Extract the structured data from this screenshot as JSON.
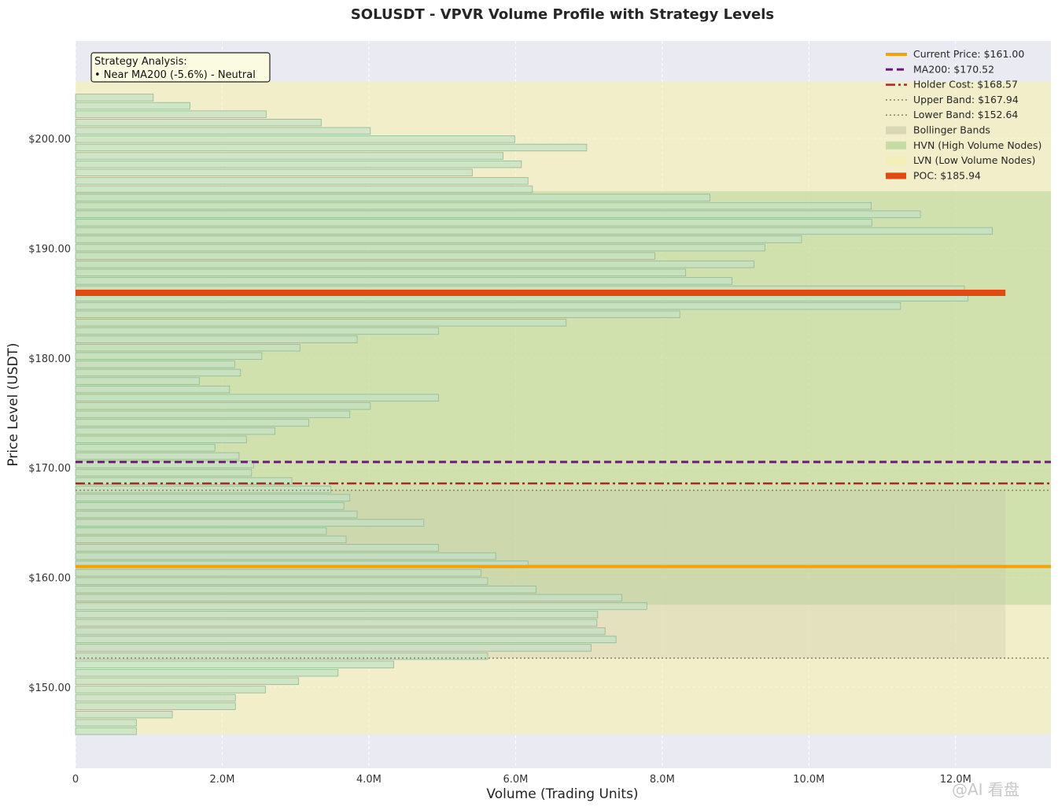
{
  "chart_data": {
    "type": "bar",
    "orientation": "horizontal",
    "title": "SOLUSDT - VPVR Volume Profile with Strategy Levels",
    "xlabel": "Volume (Trading Units)",
    "ylabel": "Price Level (USDT)",
    "xlim": [
      0,
      13300000
    ],
    "ylim": [
      142.6,
      208.9
    ],
    "x_ticks": [
      0,
      2000000,
      4000000,
      6000000,
      8000000,
      10000000,
      12000000
    ],
    "x_tick_labels": [
      "0",
      "2.0M",
      "4.0M",
      "6.0M",
      "8.0M",
      "10.0M",
      "12.0M"
    ],
    "y_ticks": [
      150,
      160,
      170,
      180,
      190,
      200
    ],
    "y_tick_labels": [
      "$150.00",
      "$160.00",
      "$170.00",
      "$180.00",
      "$190.00",
      "$200.00"
    ],
    "grid": true,
    "legend_position": "top-right",
    "bin_height": 0.76,
    "profile": {
      "prices": [
        145.98,
        146.74,
        147.5,
        148.26,
        149.02,
        149.78,
        150.54,
        151.3,
        152.06,
        152.82,
        153.58,
        154.34,
        155.1,
        155.86,
        156.62,
        157.38,
        158.14,
        158.9,
        159.66,
        160.42,
        161.18,
        161.94,
        162.7,
        163.46,
        164.22,
        164.98,
        165.74,
        166.5,
        167.26,
        168.02,
        168.78,
        169.54,
        170.3,
        171.06,
        171.82,
        172.58,
        173.34,
        174.1,
        174.86,
        175.62,
        176.38,
        177.14,
        177.9,
        178.66,
        179.42,
        180.18,
        180.94,
        181.7,
        182.46,
        183.22,
        183.98,
        184.74,
        185.5,
        186.26,
        187.02,
        187.78,
        188.54,
        189.3,
        190.06,
        190.82,
        191.58,
        192.34,
        193.1,
        193.86,
        194.62,
        195.38,
        196.14,
        196.9,
        197.66,
        198.42,
        199.18,
        199.94,
        200.7,
        201.46,
        202.22,
        202.98,
        203.74,
        204.5,
        205.26
      ],
      "volumes": [
        830000,
        830000,
        1320000,
        2180000,
        2180000,
        2590000,
        3040000,
        3580000,
        4340000,
        5620000,
        7030000,
        7370000,
        7220000,
        7110000,
        7120000,
        7790000,
        7450000,
        6280000,
        5620000,
        5530000,
        6170000,
        5730000,
        4950000,
        3690000,
        3420000,
        4750000,
        3840000,
        3660000,
        3740000,
        3480000,
        2950000,
        2400000,
        2430000,
        2230000,
        1900000,
        2330000,
        2720000,
        3180000,
        3740000,
        4020000,
        4950000,
        2100000,
        1690000,
        2250000,
        2170000,
        2540000,
        3060000,
        3840000,
        4950000,
        6690000,
        8240000,
        11250000,
        12170000,
        12120000,
        8950000,
        8320000,
        9250000,
        7900000,
        9400000,
        9900000,
        12500000,
        10860000,
        11520000,
        10850000,
        8650000,
        6230000,
        6170000,
        5410000,
        6080000,
        5830000,
        6970000,
        5990000,
        4020000,
        3350000,
        2600000,
        1560000,
        1060000,
        0,
        0
      ]
    },
    "series": [
      {
        "name": "Current Price: $161.00",
        "value": 161.0,
        "color": "#f0a30a",
        "style": "solid"
      },
      {
        "name": "MA200: $170.52",
        "value": 170.52,
        "color": "#6b1a7a",
        "style": "dashed"
      },
      {
        "name": "Holder Cost: $168.57",
        "value": 168.57,
        "color": "#a52a2a",
        "style": "dashdot"
      },
      {
        "name": "Upper Band: $167.94",
        "value": 167.94,
        "color": "#8a8a7a",
        "style": "dotted"
      },
      {
        "name": "Lower Band: $152.64",
        "value": 152.64,
        "color": "#8a8a7a",
        "style": "dotted"
      },
      {
        "name": "Bollinger Bands",
        "range": [
          152.64,
          167.94
        ],
        "color": "#c9c9a8"
      },
      {
        "name": "HVN (High Volume Nodes)",
        "range": [
          157.5,
          195.2
        ],
        "color": "#a8d08d"
      },
      {
        "name": "LVN (Low Volume Nodes)",
        "range": [
          145.7,
          205.2
        ],
        "color": "#f5f0a8"
      },
      {
        "name": "POC: $185.94",
        "value": 185.94,
        "volume": 12680000,
        "color": "#e24a10"
      }
    ],
    "annotation": {
      "title": "Strategy Analysis:",
      "line": "• Near MA200 (-5.6%) - Neutral"
    }
  },
  "colors": {
    "plot_background": "#eaeaf2",
    "bar_fill": "#c4e0c4",
    "bar_edge": "#8fb895",
    "grid": "#ffffff"
  },
  "watermark": "@AI 看盘"
}
